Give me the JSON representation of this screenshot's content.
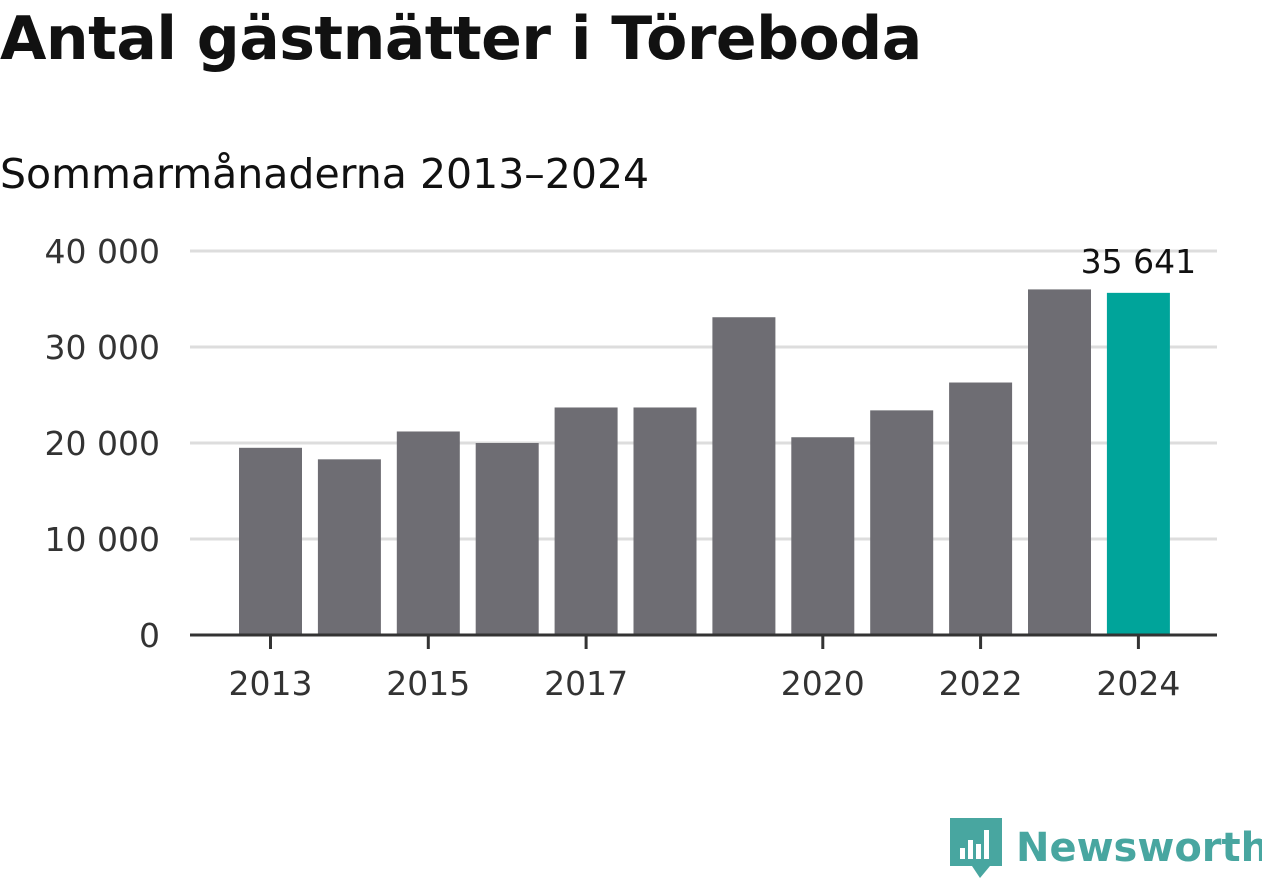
{
  "header": {
    "title": "Antal gästnätter i Töreboda",
    "subtitle": "Sommarmånaderna 2013–2024"
  },
  "brand": {
    "name": "Newsworthy",
    "icon": "newsworthy-logo-icon"
  },
  "colors": {
    "bar": "#6e6d73",
    "highlight": "#00a49a",
    "gridline": "#dddddd",
    "axis": "#333333",
    "brand": "#48a6a0"
  },
  "chart_data": {
    "type": "bar",
    "title": "Antal gästnätter i Töreboda",
    "subtitle": "Sommarmånaderna 2013–2024",
    "categories": [
      "2013",
      "2014",
      "2015",
      "2016",
      "2017",
      "2018",
      "2019",
      "2020",
      "2021",
      "2022",
      "2023",
      "2024"
    ],
    "values": [
      19500,
      18300,
      21200,
      20000,
      23700,
      23700,
      33100,
      20600,
      23400,
      26300,
      36000,
      35641
    ],
    "x_tick_labels": [
      "2013",
      "2015",
      "2017",
      "2020",
      "2022",
      "2024"
    ],
    "y_ticks": [
      0,
      10000,
      20000,
      30000,
      40000
    ],
    "y_tick_labels": [
      "0",
      "10 000",
      "20 000",
      "30 000",
      "40 000"
    ],
    "ylim": [
      0,
      40000
    ],
    "highlight_index": 11,
    "annotation": "35 641",
    "grid": true,
    "xlabel": "",
    "ylabel": ""
  }
}
